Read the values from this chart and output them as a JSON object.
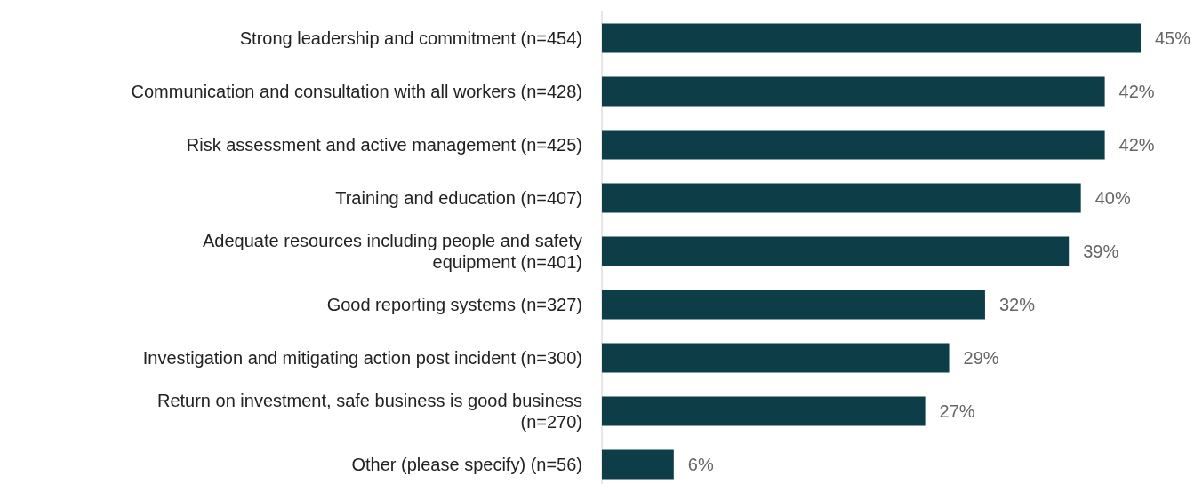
{
  "chart_data": {
    "type": "bar",
    "orientation": "horizontal",
    "categories": [
      "Strong leadership and commitment (n=454)",
      "Communication and consultation with all workers (n=428)",
      "Risk assessment and active management (n=425)",
      "Training and education (n=407)",
      "Adequate resources including people and safety equipment (n=401)",
      "Good reporting systems (n=327)",
      "Investigation and mitigating action post incident (n=300)",
      "Return on investment, safe business is good business (n=270)",
      "Other (please specify) (n=56)"
    ],
    "values": [
      45,
      42,
      42,
      40,
      39,
      32,
      29,
      27,
      6
    ],
    "value_labels": [
      "45%",
      "42%",
      "42%",
      "40%",
      "39%",
      "32%",
      "29%",
      "27%",
      "6%"
    ],
    "color": "#0d3d47"
  }
}
